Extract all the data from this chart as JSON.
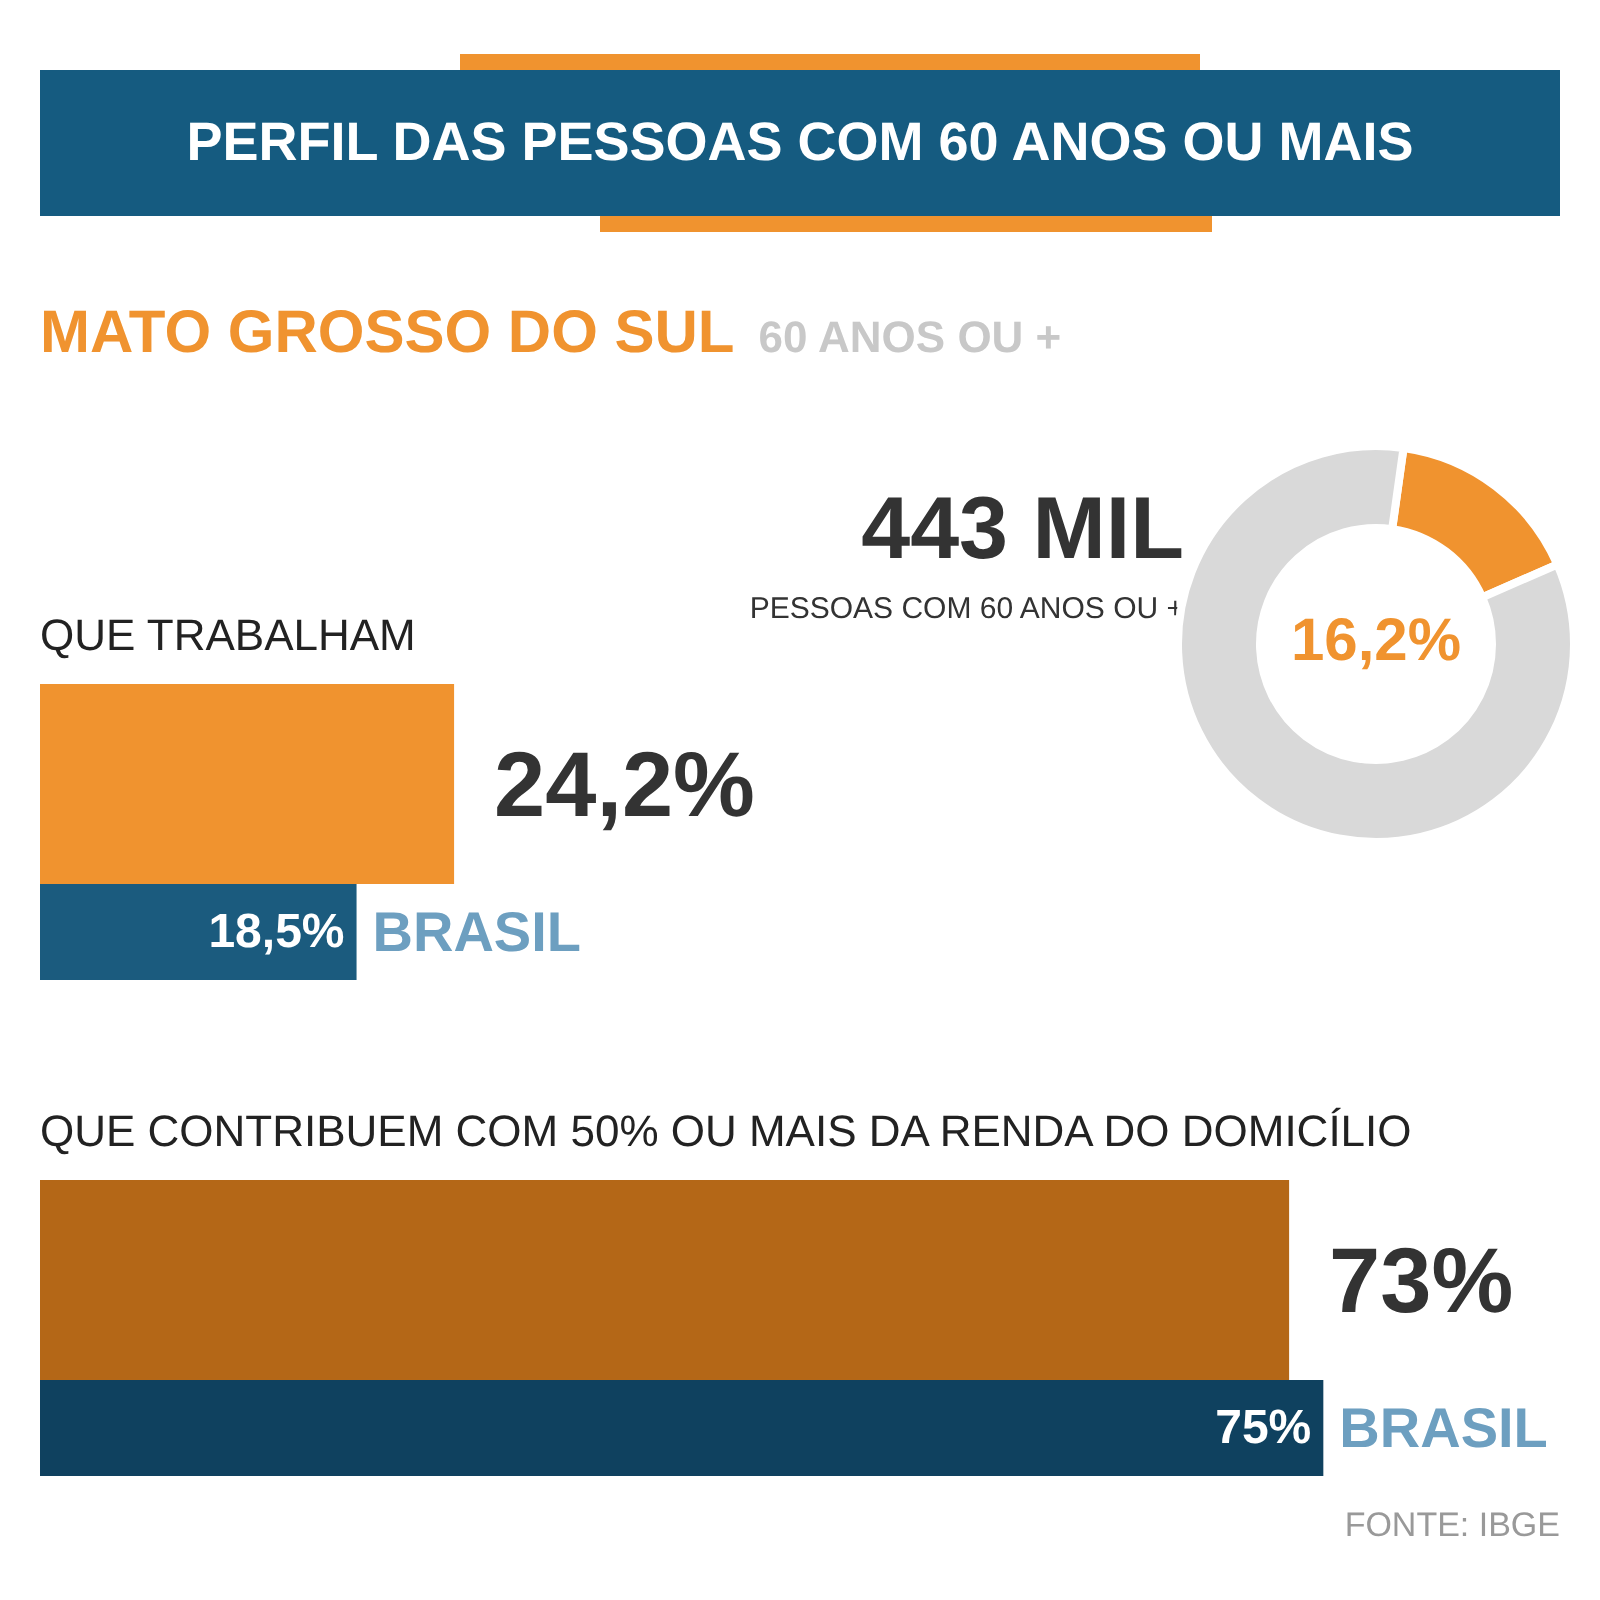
{
  "chart_data": [
    {
      "type": "donut",
      "title": "PERFIL DAS PESSOAS COM 60 ANOS OU MAIS",
      "subtitle": "MATO GROSSO DO SUL",
      "annotations": [
        "60 ANOS OU +",
        "443 MIL",
        "PESSOAS COM 60 ANOS OU +"
      ],
      "categories": [
        null,
        null
      ],
      "values": [
        16.2,
        83.8
      ],
      "colors": [
        "#f0932f",
        "#d9d9d9"
      ],
      "value_labels": [
        "16,2%",
        null
      ]
    },
    {
      "type": "bar",
      "orientation": "horizontal",
      "title": "QUE TRABALHAM",
      "categories": [
        null
      ],
      "series": [
        {
          "color": "#f0932f",
          "values": [
            24.2
          ],
          "value_labels": [
            "24,2%"
          ]
        },
        {
          "name": "BRASIL",
          "color": "#1b5b7e",
          "values": [
            18.5
          ],
          "value_labels": [
            "18,5%"
          ]
        }
      ]
    },
    {
      "type": "bar",
      "orientation": "horizontal",
      "title": "QUE CONTRIBUEM COM 50% OU MAIS DA RENDA DO DOMICÍLIO",
      "categories": [
        null
      ],
      "series": [
        {
          "color": "#b46717",
          "values": [
            73
          ],
          "value_labels": [
            "73%"
          ]
        },
        {
          "name": "BRASIL",
          "color": "#0f415f",
          "values": [
            75
          ],
          "value_labels": [
            "75%"
          ]
        }
      ],
      "annotations": [
        "FONTE: IBGE"
      ]
    }
  ]
}
